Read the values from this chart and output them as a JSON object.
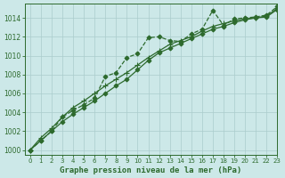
{
  "title": "Graphe pression niveau de la mer (hPa)",
  "background_color": "#cce8e8",
  "grid_color": "#aacccc",
  "line_color": "#2d6a2d",
  "xlim": [
    -0.5,
    23
  ],
  "ylim": [
    999.5,
    1015.5
  ],
  "yticks": [
    1000,
    1002,
    1004,
    1006,
    1008,
    1010,
    1012,
    1014
  ],
  "xticks": [
    0,
    1,
    2,
    3,
    4,
    5,
    6,
    7,
    8,
    9,
    10,
    11,
    12,
    13,
    14,
    15,
    16,
    17,
    18,
    19,
    20,
    21,
    22,
    23
  ],
  "series": [
    {
      "y": [
        1000.0,
        1001.0,
        1002.0,
        1003.5,
        1004.2,
        1004.8,
        1005.5,
        1007.8,
        1008.2,
        1009.8,
        1010.2,
        1011.9,
        1012.0,
        1011.6,
        1011.5,
        1012.3,
        1012.8,
        1014.8,
        1013.2,
        1013.9,
        1014.0,
        1014.1,
        1014.3,
        1015.2
      ],
      "marker": "D",
      "markersize": 2.5,
      "linestyle": "--",
      "linewidth": 0.9
    },
    {
      "y": [
        1000.0,
        1001.0,
        1002.0,
        1003.0,
        1003.8,
        1004.5,
        1005.2,
        1006.0,
        1006.8,
        1007.5,
        1008.5,
        1009.5,
        1010.3,
        1010.8,
        1011.3,
        1011.8,
        1012.3,
        1012.8,
        1013.1,
        1013.5,
        1013.8,
        1014.0,
        1014.1,
        1014.9
      ],
      "marker": "D",
      "markersize": 2.5,
      "linestyle": "-",
      "linewidth": 0.9
    },
    {
      "y": [
        1000.0,
        1001.3,
        1002.3,
        1003.5,
        1004.5,
        1005.2,
        1006.0,
        1006.8,
        1007.5,
        1008.2,
        1009.0,
        1009.8,
        1010.5,
        1011.2,
        1011.6,
        1012.0,
        1012.6,
        1013.1,
        1013.4,
        1013.7,
        1013.9,
        1014.0,
        1014.2,
        1015.0
      ],
      "marker": "+",
      "markersize": 4,
      "linestyle": "-",
      "linewidth": 0.9
    }
  ]
}
